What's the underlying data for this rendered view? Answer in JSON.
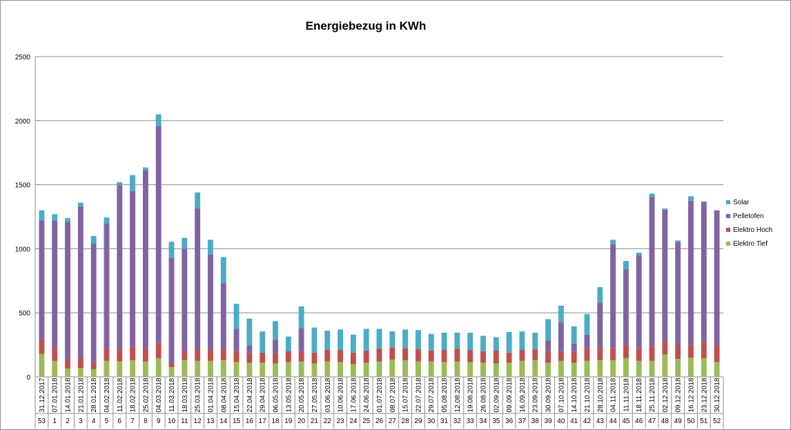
{
  "chart_data": {
    "type": "bar",
    "stacked": true,
    "title": "Energiebezug in KWh",
    "xlabel": "",
    "ylabel": "",
    "ylim": [
      0,
      2500
    ],
    "yticks": [
      0,
      500,
      1000,
      1500,
      2000,
      2500
    ],
    "grid": true,
    "legend_position": "right",
    "categories": [
      "31.12.2017",
      "07.01.2018",
      "14.01.2018",
      "21.01.2018",
      "28.01.2018",
      "04.02.2018",
      "11.02.2018",
      "18.02.2018",
      "25.02.2018",
      "04.03.2018",
      "11.03.2018",
      "18.03.2018",
      "25.03.2018",
      "01.04.2018",
      "08.04.2018",
      "15.04.2018",
      "22.04.2018",
      "29.04.2018",
      "06.05.2018",
      "13.05.2018",
      "20.05.2018",
      "27.05.2018",
      "03.06.2018",
      "10.06.2018",
      "17.06.2018",
      "24.06.2018",
      "01.07.2018",
      "08.07.2018",
      "15.07.2018",
      "22.07.2018",
      "29.07.2018",
      "05.08.2018",
      "12.08.2018",
      "19.08.2018",
      "26.08.2018",
      "02.09.2018",
      "09.09.2018",
      "16.09.2018",
      "23.09.2018",
      "30.09.2018",
      "07.10.2018",
      "14.10.2018",
      "21.10.2018",
      "28.10.2018",
      "04.11.2018",
      "11.11.2018",
      "18.11.2018",
      "25.11.2018",
      "02.12.2018",
      "09.12.2018",
      "16.12.2018",
      "23.12.2018",
      "30.12.2018"
    ],
    "weeks": [
      "53",
      "1",
      "2",
      "3",
      "4",
      "5",
      "6",
      "7",
      "8",
      "9",
      "10",
      "11",
      "12",
      "13",
      "14",
      "15",
      "16",
      "17",
      "18",
      "19",
      "20",
      "21",
      "22",
      "23",
      "24",
      "25",
      "26",
      "27",
      "28",
      "29",
      "30",
      "31",
      "32",
      "33",
      "34",
      "35",
      "36",
      "37",
      "38",
      "39",
      "40",
      "41",
      "42",
      "43",
      "44",
      "45",
      "46",
      "47",
      "48",
      "49",
      "50",
      "51",
      "52"
    ],
    "series": [
      {
        "name": "Elektro Tief",
        "color": "#9bbb59",
        "values": [
          180,
          125,
          65,
          70,
          60,
          125,
          120,
          130,
          120,
          145,
          75,
          130,
          125,
          125,
          130,
          115,
          110,
          110,
          105,
          115,
          120,
          105,
          120,
          115,
          100,
          110,
          120,
          135,
          130,
          120,
          120,
          115,
          120,
          115,
          110,
          105,
          110,
          125,
          130,
          110,
          125,
          110,
          125,
          130,
          130,
          145,
          125,
          125,
          175,
          140,
          150,
          145,
          115
        ]
      },
      {
        "name": "Elektro Hoch",
        "color": "#c0504d",
        "values": [
          115,
          95,
          70,
          80,
          55,
          95,
          100,
          105,
          100,
          115,
          30,
          70,
          90,
          90,
          85,
          85,
          75,
          80,
          80,
          85,
          80,
          85,
          90,
          95,
          90,
          95,
          100,
          95,
          95,
          95,
          85,
          95,
          100,
          95,
          90,
          100,
          80,
          85,
          85,
          90,
          70,
          85,
          95,
          95,
          95,
          105,
          100,
          110,
          105,
          105,
          100,
          120,
          125
        ]
      },
      {
        "name": "Pelletofen",
        "color": "#8064a2",
        "values": [
          925,
          1000,
          1075,
          1180,
          925,
          980,
          1275,
          1215,
          1395,
          1700,
          825,
          800,
          1100,
          740,
          515,
          175,
          60,
          0,
          105,
          0,
          180,
          0,
          0,
          0,
          0,
          0,
          0,
          0,
          0,
          0,
          0,
          0,
          0,
          0,
          0,
          0,
          0,
          0,
          0,
          85,
          230,
          65,
          110,
          355,
          810,
          590,
          725,
          1170,
          1025,
          810,
          1125,
          1100,
          1060
        ]
      },
      {
        "name": "Solar",
        "color": "#4bacc6",
        "values": [
          80,
          50,
          30,
          30,
          60,
          45,
          25,
          125,
          20,
          90,
          125,
          85,
          125,
          115,
          205,
          195,
          210,
          165,
          145,
          115,
          170,
          195,
          150,
          160,
          140,
          170,
          155,
          125,
          145,
          150,
          130,
          135,
          125,
          135,
          120,
          105,
          160,
          145,
          130,
          165,
          130,
          135,
          160,
          120,
          35,
          65,
          20,
          25,
          10,
          10,
          35,
          5,
          0
        ]
      }
    ]
  }
}
